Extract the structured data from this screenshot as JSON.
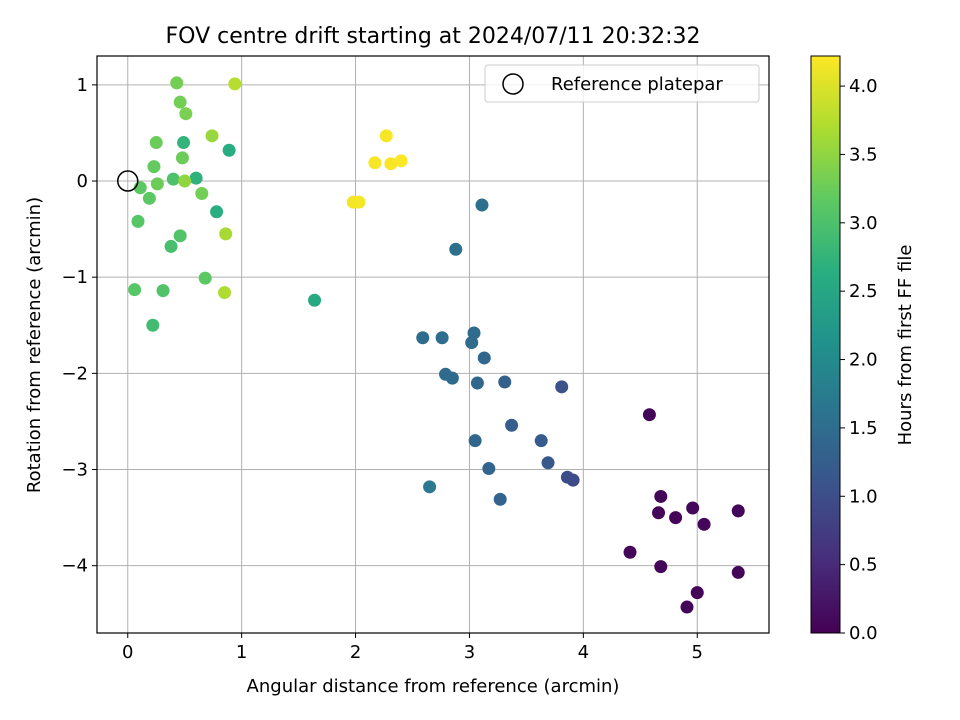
{
  "chart_data": {
    "type": "scatter",
    "title": "FOV centre drift starting at 2024/07/11 20:32:32",
    "xlabel": "Angular distance from reference (arcmin)",
    "ylabel": "Rotation from reference (arcmin)",
    "xlim": [
      -0.27,
      5.63
    ],
    "ylim": [
      -4.7,
      1.3
    ],
    "xticks": [
      0,
      1,
      2,
      3,
      4,
      5
    ],
    "xtick_labels": [
      "0",
      "1",
      "2",
      "3",
      "4",
      "5"
    ],
    "yticks": [
      1,
      0,
      -1,
      -2,
      -3,
      -4
    ],
    "ytick_labels": [
      "1",
      "0",
      "−1",
      "−2",
      "−3",
      "−4"
    ],
    "grid": true,
    "legend": {
      "position": "top-right",
      "entries": [
        "Reference platepar"
      ]
    },
    "reference_point": {
      "x": 0,
      "y": 0,
      "label": "Reference platepar"
    },
    "colorbar": {
      "label": "Hours from first FF file",
      "min": 0.0,
      "max": 4.22,
      "colormap": "viridis",
      "ticks": [
        0.0,
        0.5,
        1.0,
        1.5,
        2.0,
        2.5,
        3.0,
        3.5,
        4.0
      ],
      "tick_labels": [
        "0.0",
        "0.5",
        "1.0",
        "1.5",
        "2.0",
        "2.5",
        "3.0",
        "3.5",
        "4.0"
      ]
    },
    "points": [
      {
        "x": 4.58,
        "y": -2.43,
        "c": 0.05
      },
      {
        "x": 4.68,
        "y": -3.28,
        "c": 0.06
      },
      {
        "x": 4.66,
        "y": -3.45,
        "c": 0.05
      },
      {
        "x": 4.81,
        "y": -3.5,
        "c": 0.05
      },
      {
        "x": 4.96,
        "y": -3.4,
        "c": 0.08
      },
      {
        "x": 5.06,
        "y": -3.57,
        "c": 0.07
      },
      {
        "x": 5.36,
        "y": -3.43,
        "c": 0.06
      },
      {
        "x": 4.41,
        "y": -3.86,
        "c": 0.07
      },
      {
        "x": 4.68,
        "y": -4.01,
        "c": 0.06
      },
      {
        "x": 5.0,
        "y": -4.28,
        "c": 0.05
      },
      {
        "x": 4.91,
        "y": -4.43,
        "c": 0.06
      },
      {
        "x": 5.36,
        "y": -4.07,
        "c": 0.05
      },
      {
        "x": 3.81,
        "y": -2.14,
        "c": 1.05
      },
      {
        "x": 3.86,
        "y": -3.08,
        "c": 1.0
      },
      {
        "x": 3.91,
        "y": -3.11,
        "c": 0.95
      },
      {
        "x": 3.69,
        "y": -2.93,
        "c": 1.15
      },
      {
        "x": 3.63,
        "y": -2.7,
        "c": 1.2
      },
      {
        "x": 3.37,
        "y": -2.54,
        "c": 1.25
      },
      {
        "x": 3.31,
        "y": -2.09,
        "c": 1.3
      },
      {
        "x": 3.27,
        "y": -3.31,
        "c": 1.35
      },
      {
        "x": 3.17,
        "y": -2.99,
        "c": 1.35
      },
      {
        "x": 3.05,
        "y": -2.7,
        "c": 1.4
      },
      {
        "x": 3.07,
        "y": -2.1,
        "c": 1.4
      },
      {
        "x": 2.85,
        "y": -2.05,
        "c": 1.45
      },
      {
        "x": 2.79,
        "y": -2.01,
        "c": 1.45
      },
      {
        "x": 3.13,
        "y": -1.84,
        "c": 1.4
      },
      {
        "x": 3.02,
        "y": -1.68,
        "c": 1.45
      },
      {
        "x": 3.04,
        "y": -1.58,
        "c": 1.45
      },
      {
        "x": 2.76,
        "y": -1.63,
        "c": 1.5
      },
      {
        "x": 2.59,
        "y": -1.63,
        "c": 1.5
      },
      {
        "x": 2.88,
        "y": -0.71,
        "c": 1.55
      },
      {
        "x": 3.11,
        "y": -0.25,
        "c": 1.55
      },
      {
        "x": 2.65,
        "y": -3.18,
        "c": 1.7
      },
      {
        "x": 1.64,
        "y": -1.24,
        "c": 2.55
      },
      {
        "x": 0.89,
        "y": 0.32,
        "c": 2.6
      },
      {
        "x": 0.78,
        "y": -0.32,
        "c": 2.65
      },
      {
        "x": 0.6,
        "y": 0.03,
        "c": 2.7
      },
      {
        "x": 0.49,
        "y": 0.4,
        "c": 2.75
      },
      {
        "x": 0.22,
        "y": -1.5,
        "c": 2.9
      },
      {
        "x": 0.38,
        "y": -0.68,
        "c": 2.95
      },
      {
        "x": 0.4,
        "y": 0.02,
        "c": 3.0
      },
      {
        "x": 0.46,
        "y": -0.57,
        "c": 3.05
      },
      {
        "x": 0.31,
        "y": -1.14,
        "c": 3.05
      },
      {
        "x": 0.06,
        "y": -1.13,
        "c": 3.1
      },
      {
        "x": 0.09,
        "y": -0.42,
        "c": 3.1
      },
      {
        "x": 0.11,
        "y": -0.07,
        "c": 3.15
      },
      {
        "x": 0.19,
        "y": -0.18,
        "c": 3.15
      },
      {
        "x": 0.68,
        "y": -1.01,
        "c": 3.15
      },
      {
        "x": 0.23,
        "y": 0.15,
        "c": 3.2
      },
      {
        "x": 0.26,
        "y": -0.03,
        "c": 3.25
      },
      {
        "x": 0.25,
        "y": 0.4,
        "c": 3.25
      },
      {
        "x": 0.48,
        "y": 0.24,
        "c": 3.25
      },
      {
        "x": 0.65,
        "y": -0.13,
        "c": 3.3
      },
      {
        "x": 0.43,
        "y": 1.02,
        "c": 3.3
      },
      {
        "x": 0.46,
        "y": 0.82,
        "c": 3.3
      },
      {
        "x": 0.51,
        "y": 0.7,
        "c": 3.35
      },
      {
        "x": 0.5,
        "y": 0.0,
        "c": 3.5
      },
      {
        "x": 0.74,
        "y": 0.47,
        "c": 3.55
      },
      {
        "x": 0.86,
        "y": -0.55,
        "c": 3.65
      },
      {
        "x": 0.85,
        "y": -1.16,
        "c": 3.7
      },
      {
        "x": 0.94,
        "y": 1.01,
        "c": 3.75
      },
      {
        "x": 1.98,
        "y": -0.22,
        "c": 4.15
      },
      {
        "x": 2.03,
        "y": -0.22,
        "c": 4.17
      },
      {
        "x": 2.17,
        "y": 0.19,
        "c": 4.18
      },
      {
        "x": 2.27,
        "y": 0.47,
        "c": 4.18
      },
      {
        "x": 2.31,
        "y": 0.18,
        "c": 4.19
      },
      {
        "x": 2.4,
        "y": 0.21,
        "c": 4.2
      }
    ]
  }
}
